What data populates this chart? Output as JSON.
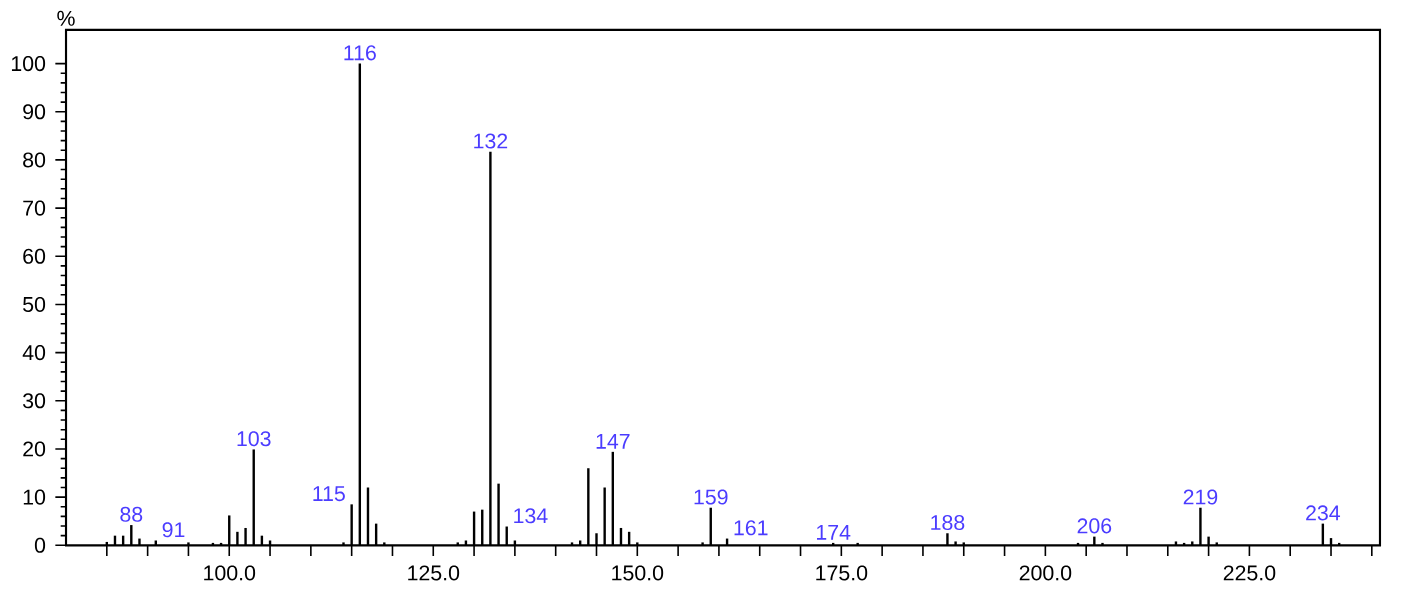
{
  "chart_data": {
    "type": "bar",
    "color": "#000000",
    "ylabel": "%",
    "x": [
      85,
      86,
      87,
      88,
      89,
      91,
      95,
      98,
      99,
      100,
      101,
      102,
      103,
      104,
      105,
      114,
      115,
      116,
      117,
      118,
      119,
      128,
      129,
      130,
      131,
      132,
      133,
      134,
      135,
      142,
      143,
      144,
      145,
      146,
      147,
      148,
      149,
      150,
      158,
      159,
      161,
      174,
      177,
      188,
      189,
      190,
      204,
      206,
      207,
      216,
      217,
      218,
      219,
      220,
      221,
      234,
      235,
      236
    ],
    "values": [
      0.7,
      2,
      2,
      4.2,
      1.4,
      1,
      0.6,
      0.5,
      0.5,
      6.2,
      2.8,
      3.6,
      19.9,
      2,
      1,
      0.6,
      8.5,
      100,
      12,
      4.5,
      0.6,
      0.6,
      1,
      7,
      7.4,
      81.7,
      12.8,
      3.9,
      1,
      0.6,
      1,
      16,
      2.5,
      12,
      19.4,
      3.6,
      2.8,
      0.6,
      0.6,
      7.8,
      1.4,
      0.5,
      0.5,
      2.5,
      0.8,
      0.6,
      0.5,
      1.8,
      0.5,
      0.8,
      0.5,
      0.8,
      7.8,
      1.8,
      0.6,
      4.5,
      1.5,
      0.5
    ],
    "xlim": [
      80,
      241
    ],
    "ylim": [
      0,
      107
    ],
    "xticks": [
      {
        "value": 85,
        "label": null
      },
      {
        "value": 90,
        "label": null
      },
      {
        "value": 95,
        "label": null
      },
      {
        "value": 100,
        "label": "100.0"
      },
      {
        "value": 105,
        "label": null
      },
      {
        "value": 110,
        "label": null
      },
      {
        "value": 115,
        "label": null
      },
      {
        "value": 120,
        "label": null
      },
      {
        "value": 125,
        "label": "125.0"
      },
      {
        "value": 130,
        "label": null
      },
      {
        "value": 135,
        "label": null
      },
      {
        "value": 140,
        "label": null
      },
      {
        "value": 145,
        "label": null
      },
      {
        "value": 150,
        "label": "150.0"
      },
      {
        "value": 155,
        "label": null
      },
      {
        "value": 160,
        "label": null
      },
      {
        "value": 165,
        "label": null
      },
      {
        "value": 170,
        "label": null
      },
      {
        "value": 175,
        "label": "175.0"
      },
      {
        "value": 180,
        "label": null
      },
      {
        "value": 185,
        "label": null
      },
      {
        "value": 190,
        "label": null
      },
      {
        "value": 195,
        "label": null
      },
      {
        "value": 200,
        "label": "200.0"
      },
      {
        "value": 205,
        "label": null
      },
      {
        "value": 210,
        "label": null
      },
      {
        "value": 215,
        "label": null
      },
      {
        "value": 220,
        "label": null
      },
      {
        "value": 225,
        "label": "225.0"
      },
      {
        "value": 230,
        "label": null
      },
      {
        "value": 235,
        "label": null
      },
      {
        "value": 240,
        "label": null
      }
    ],
    "yticks": [
      0,
      10,
      20,
      30,
      40,
      50,
      60,
      70,
      80,
      90,
      100
    ],
    "annotations": [
      {
        "text": "88",
        "x": 88,
        "y": 4.2
      },
      {
        "text": "91",
        "x": 91,
        "y": 1
      },
      {
        "text": "103",
        "x": 103,
        "y": 19.9
      },
      {
        "text": "115",
        "x": 115,
        "y": 8.5
      },
      {
        "text": "116",
        "x": 116,
        "y": 100
      },
      {
        "text": "132",
        "x": 132,
        "y": 81.7
      },
      {
        "text": "134",
        "x": 134,
        "y": 3.9
      },
      {
        "text": "147",
        "x": 147,
        "y": 19.4
      },
      {
        "text": "159",
        "x": 159,
        "y": 7.8
      },
      {
        "text": "161",
        "x": 161,
        "y": 1.4
      },
      {
        "text": "174",
        "x": 174,
        "y": 0.5
      },
      {
        "text": "188",
        "x": 188,
        "y": 2.5
      },
      {
        "text": "206",
        "x": 206,
        "y": 1.8
      },
      {
        "text": "219",
        "x": 219,
        "y": 7.8
      },
      {
        "text": "234",
        "x": 234,
        "y": 4.5
      }
    ]
  }
}
